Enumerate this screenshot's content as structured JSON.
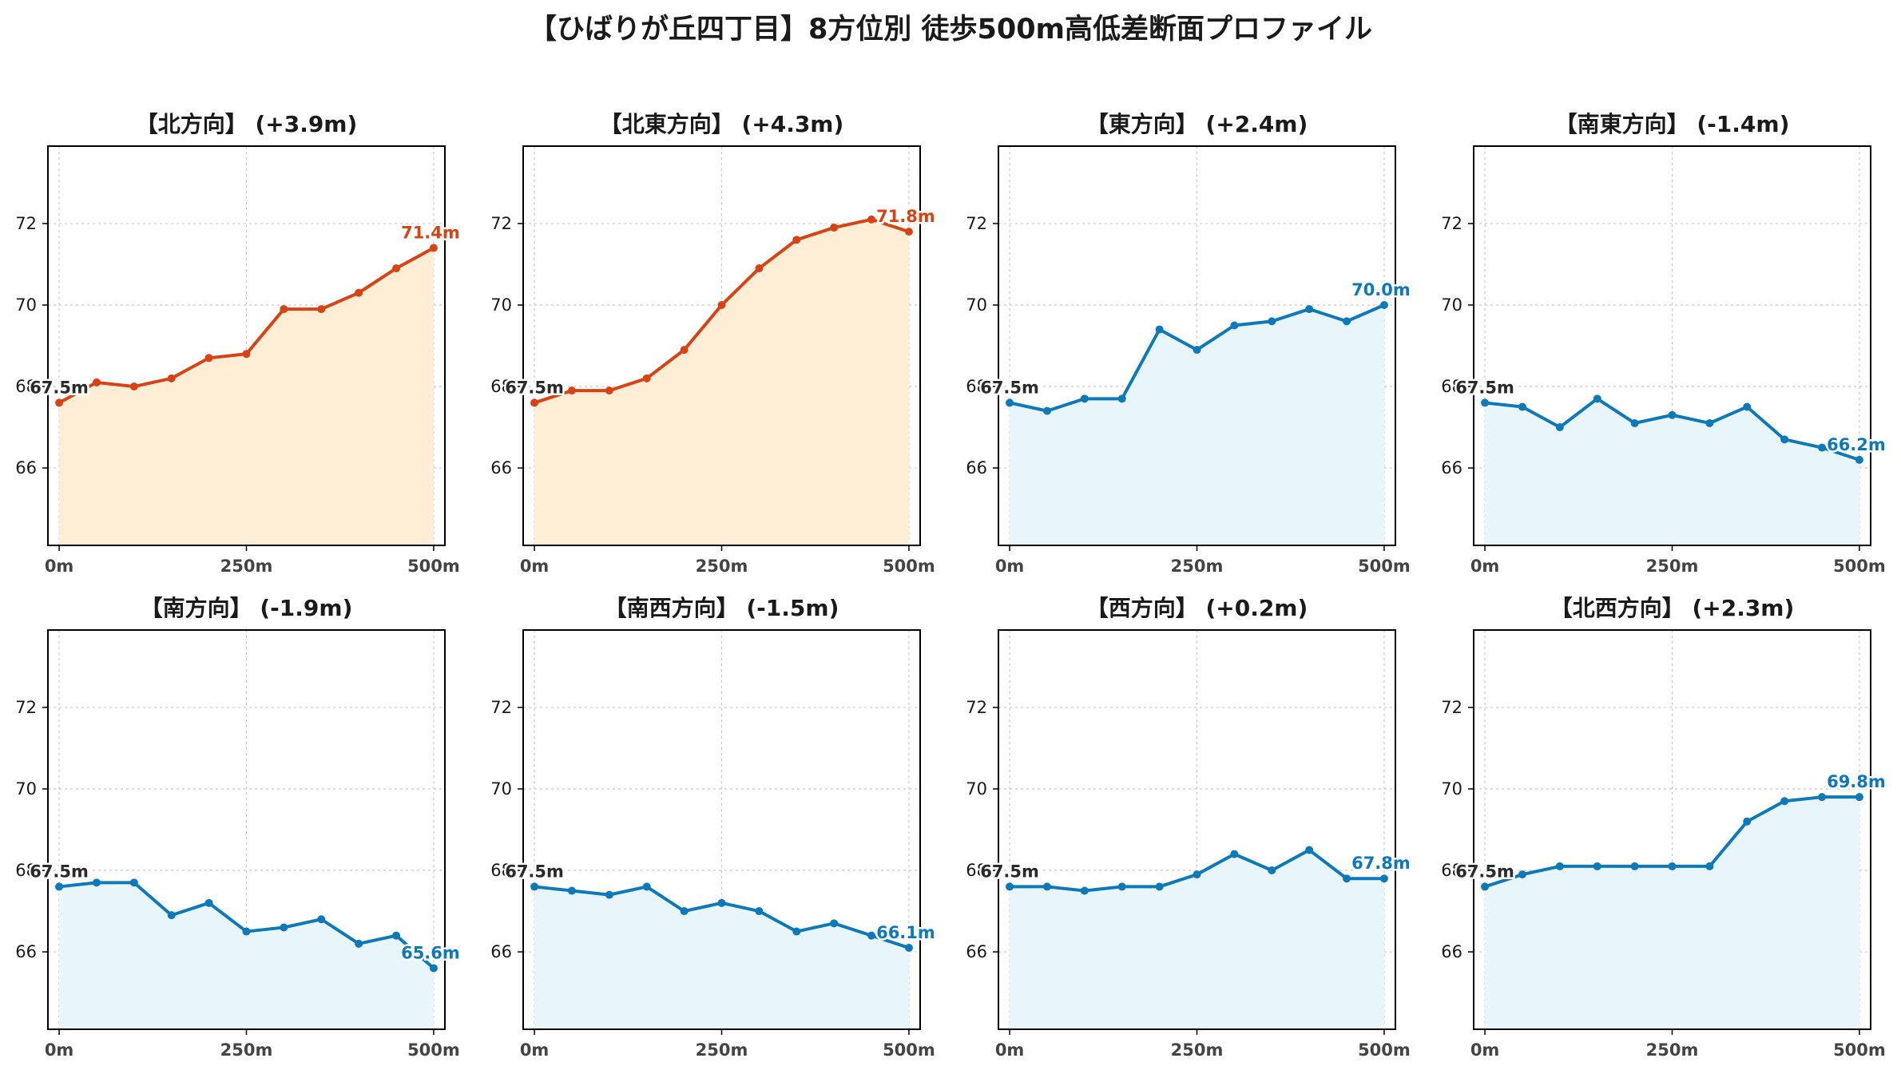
{
  "title": "【ひばりが丘四丁目】8方位別 徒歩500m高低差断面プロファイル",
  "colors": {
    "up_line": "#d84315",
    "up_fill": "#ffedd5",
    "down_line": "#0e79b8",
    "down_fill": "#e8f6fc",
    "start_label": "#2a2a2a",
    "grid": "#c8c8c8"
  },
  "chart_data": [
    {
      "type": "area",
      "title": "【北方向】 (+3.9m)",
      "trend": "up",
      "x": [
        0,
        50,
        100,
        150,
        200,
        250,
        300,
        350,
        400,
        450,
        500
      ],
      "y": [
        67.6,
        68.1,
        68.0,
        68.2,
        68.7,
        68.8,
        69.9,
        69.9,
        70.3,
        70.9,
        71.4
      ],
      "start_label": "67.5m",
      "end_label": "71.4m",
      "xticks": [
        0,
        250,
        500
      ],
      "xtick_labels": [
        "0m",
        "250m",
        "500m"
      ],
      "yticks": [
        66,
        68,
        70,
        72
      ],
      "ytick_labels": [
        "66",
        "68",
        "70",
        "72"
      ],
      "xlim": [
        -15,
        515
      ],
      "ylim": [
        64.1,
        73.9
      ],
      "grid": true
    },
    {
      "type": "area",
      "title": "【北東方向】 (+4.3m)",
      "trend": "up",
      "x": [
        0,
        50,
        100,
        150,
        200,
        250,
        300,
        350,
        400,
        450,
        500
      ],
      "y": [
        67.6,
        67.9,
        67.9,
        68.2,
        68.9,
        70.0,
        70.9,
        71.6,
        71.9,
        72.1,
        71.8
      ],
      "start_label": "67.5m",
      "end_label": "71.8m",
      "xticks": [
        0,
        250,
        500
      ],
      "xtick_labels": [
        "0m",
        "250m",
        "500m"
      ],
      "yticks": [
        66,
        68,
        70,
        72
      ],
      "ytick_labels": [
        "66",
        "68",
        "70",
        "72"
      ],
      "xlim": [
        -15,
        515
      ],
      "ylim": [
        64.1,
        73.9
      ],
      "grid": true
    },
    {
      "type": "area",
      "title": "【東方向】 (+2.4m)",
      "trend": "down",
      "x": [
        0,
        50,
        100,
        150,
        200,
        250,
        300,
        350,
        400,
        450,
        500
      ],
      "y": [
        67.6,
        67.4,
        67.7,
        67.7,
        69.4,
        68.9,
        69.5,
        69.6,
        69.9,
        69.6,
        70.0
      ],
      "start_label": "67.5m",
      "end_label": "70.0m",
      "xticks": [
        0,
        250,
        500
      ],
      "xtick_labels": [
        "0m",
        "250m",
        "500m"
      ],
      "yticks": [
        66,
        68,
        70,
        72
      ],
      "ytick_labels": [
        "66",
        "68",
        "70",
        "72"
      ],
      "xlim": [
        -15,
        515
      ],
      "ylim": [
        64.1,
        73.9
      ],
      "grid": true
    },
    {
      "type": "area",
      "title": "【南東方向】 (-1.4m)",
      "trend": "down",
      "x": [
        0,
        50,
        100,
        150,
        200,
        250,
        300,
        350,
        400,
        450,
        500
      ],
      "y": [
        67.6,
        67.5,
        67.0,
        67.7,
        67.1,
        67.3,
        67.1,
        67.5,
        66.7,
        66.5,
        66.2
      ],
      "start_label": "67.5m",
      "end_label": "66.2m",
      "xticks": [
        0,
        250,
        500
      ],
      "xtick_labels": [
        "0m",
        "250m",
        "500m"
      ],
      "yticks": [
        66,
        68,
        70,
        72
      ],
      "ytick_labels": [
        "66",
        "68",
        "70",
        "72"
      ],
      "xlim": [
        -15,
        515
      ],
      "ylim": [
        64.1,
        73.9
      ],
      "grid": true
    },
    {
      "type": "area",
      "title": "【南方向】 (-1.9m)",
      "trend": "down",
      "x": [
        0,
        50,
        100,
        150,
        200,
        250,
        300,
        350,
        400,
        450,
        500
      ],
      "y": [
        67.6,
        67.7,
        67.7,
        66.9,
        67.2,
        66.5,
        66.6,
        66.8,
        66.2,
        66.4,
        65.6
      ],
      "start_label": "67.5m",
      "end_label": "65.6m",
      "xticks": [
        0,
        250,
        500
      ],
      "xtick_labels": [
        "0m",
        "250m",
        "500m"
      ],
      "yticks": [
        66,
        68,
        70,
        72
      ],
      "ytick_labels": [
        "66",
        "68",
        "70",
        "72"
      ],
      "xlim": [
        -15,
        515
      ],
      "ylim": [
        64.1,
        73.9
      ],
      "grid": true
    },
    {
      "type": "area",
      "title": "【南西方向】 (-1.5m)",
      "trend": "down",
      "x": [
        0,
        50,
        100,
        150,
        200,
        250,
        300,
        350,
        400,
        450,
        500
      ],
      "y": [
        67.6,
        67.5,
        67.4,
        67.6,
        67.0,
        67.2,
        67.0,
        66.5,
        66.7,
        66.4,
        66.1
      ],
      "start_label": "67.5m",
      "end_label": "66.1m",
      "xticks": [
        0,
        250,
        500
      ],
      "xtick_labels": [
        "0m",
        "250m",
        "500m"
      ],
      "yticks": [
        66,
        68,
        70,
        72
      ],
      "ytick_labels": [
        "66",
        "68",
        "70",
        "72"
      ],
      "xlim": [
        -15,
        515
      ],
      "ylim": [
        64.1,
        73.9
      ],
      "grid": true
    },
    {
      "type": "area",
      "title": "【西方向】 (+0.2m)",
      "trend": "down",
      "x": [
        0,
        50,
        100,
        150,
        200,
        250,
        300,
        350,
        400,
        450,
        500
      ],
      "y": [
        67.6,
        67.6,
        67.5,
        67.6,
        67.6,
        67.9,
        68.4,
        68.0,
        68.5,
        67.8,
        67.8
      ],
      "start_label": "67.5m",
      "end_label": "67.8m",
      "xticks": [
        0,
        250,
        500
      ],
      "xtick_labels": [
        "0m",
        "250m",
        "500m"
      ],
      "yticks": [
        66,
        68,
        70,
        72
      ],
      "ytick_labels": [
        "66",
        "68",
        "70",
        "72"
      ],
      "xlim": [
        -15,
        515
      ],
      "ylim": [
        64.1,
        73.9
      ],
      "grid": true
    },
    {
      "type": "area",
      "title": "【北西方向】 (+2.3m)",
      "trend": "down",
      "x": [
        0,
        50,
        100,
        150,
        200,
        250,
        300,
        350,
        400,
        450,
        500
      ],
      "y": [
        67.6,
        67.9,
        68.1,
        68.1,
        68.1,
        68.1,
        68.1,
        69.2,
        69.7,
        69.8,
        69.8
      ],
      "start_label": "67.5m",
      "end_label": "69.8m",
      "xticks": [
        0,
        250,
        500
      ],
      "xtick_labels": [
        "0m",
        "250m",
        "500m"
      ],
      "yticks": [
        66,
        68,
        70,
        72
      ],
      "ytick_labels": [
        "66",
        "68",
        "70",
        "72"
      ],
      "xlim": [
        -15,
        515
      ],
      "ylim": [
        64.1,
        73.9
      ],
      "grid": true
    }
  ]
}
